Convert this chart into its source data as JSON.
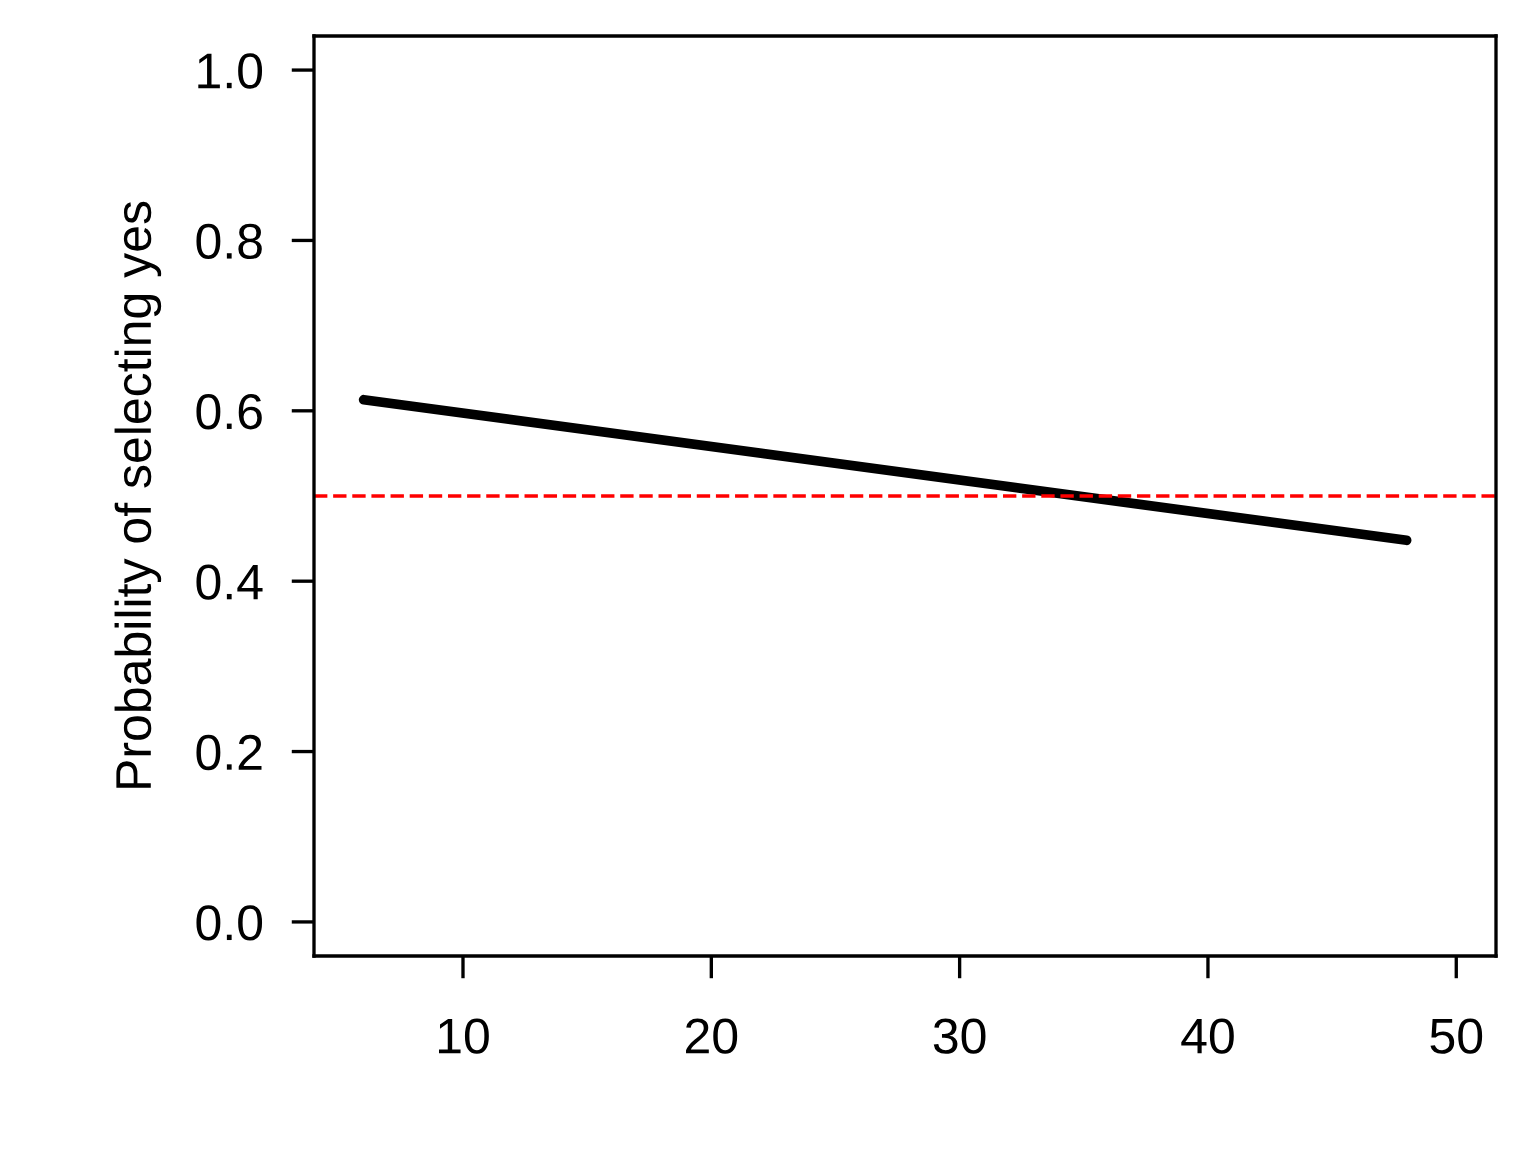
{
  "chart_data": {
    "type": "line",
    "ylabel": "Probability of selecting yes",
    "x": [
      6,
      48
    ],
    "series": [
      {
        "color": "#000000",
        "values": [
          0.613,
          0.448
        ]
      }
    ],
    "xlim": [
      4,
      51.6
    ],
    "xticks": [
      10,
      20,
      30,
      40,
      50
    ],
    "ylim": [
      -0.04,
      1.04
    ],
    "yticks": [
      {
        "value": 0,
        "label": "0.0"
      },
      0.2,
      0.4,
      0.6,
      0.8,
      {
        "value": 1,
        "label": "1.0"
      }
    ],
    "ref_lines": [
      {
        "axis": "y",
        "value": 0.5,
        "color": "#ff0000",
        "line_style": "dashed"
      }
    ],
    "grid": false,
    "legend": false,
    "marker": "none",
    "line_style": "solid"
  }
}
